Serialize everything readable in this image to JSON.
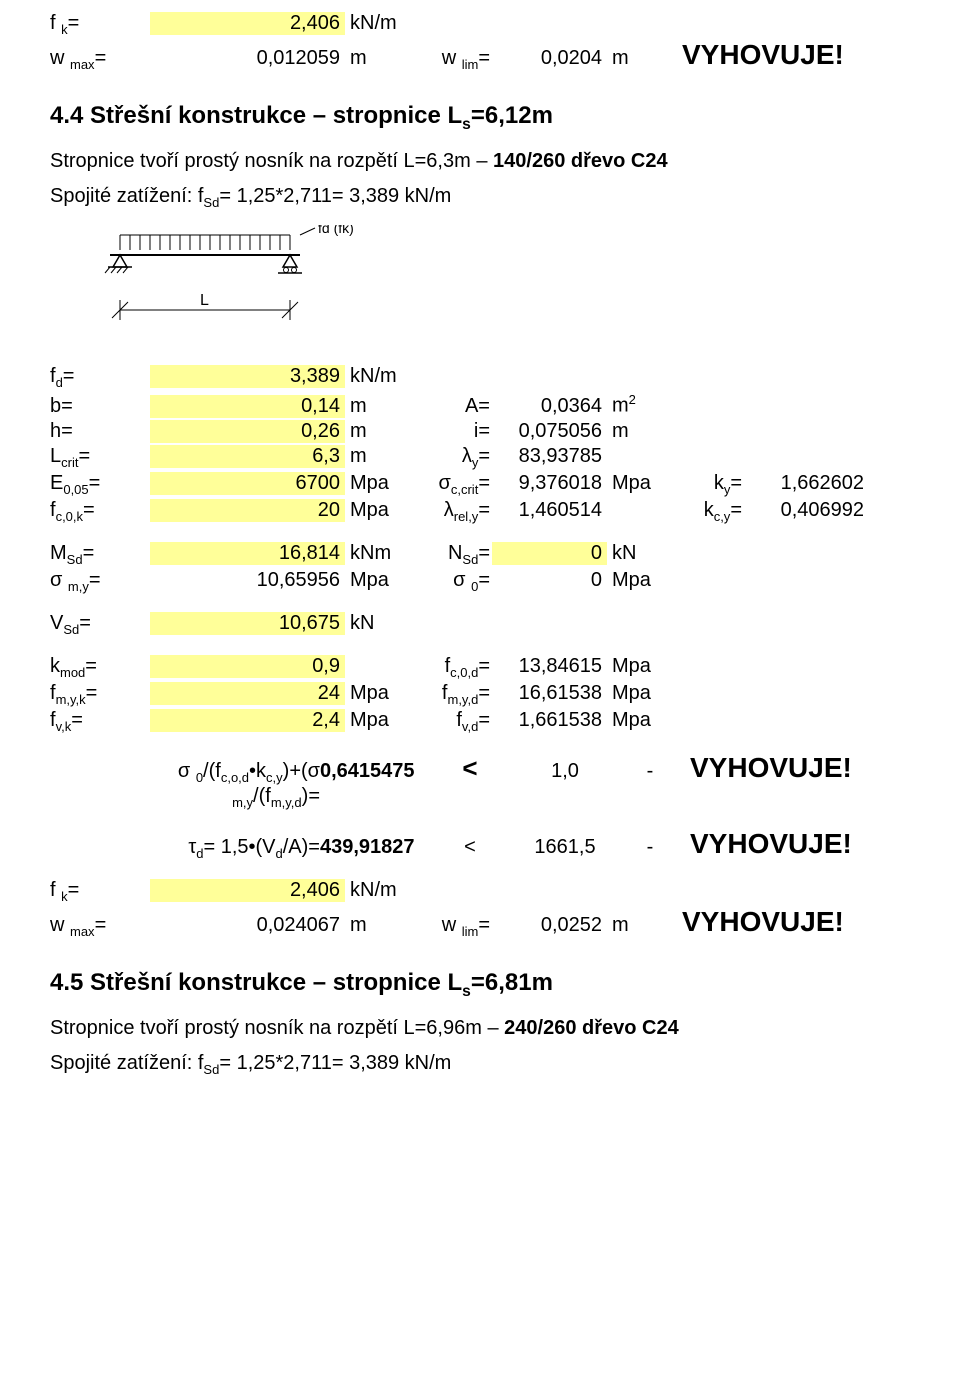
{
  "topblock": {
    "fk": {
      "sym": "f <sub>k</sub>=",
      "val": "2,406",
      "unit": "kN/m"
    },
    "wmax": {
      "sym": "w <sub>max</sub>=",
      "val": "0,012059",
      "unit": "m"
    },
    "wlim": {
      "sym": "w <sub>lim</sub>=",
      "val": "0,0204",
      "unit": "m"
    },
    "vyh": "VYHOVUJE!"
  },
  "heading44": "4.4  Střešní konstrukce – stropnice L<sub>s</sub>=6,12m",
  "para44a": "Stropnice tvoří prostý nosník na rozpětí L=6,3m – <b>140/260 dřevo C24</b>",
  "para44b": "Spojité zatížení: f<sub>Sd</sub>= 1,25*2,711= 3,389 kN/m",
  "block1": {
    "fd": {
      "sym": "f<sub>d</sub>=",
      "val": "3,389",
      "unit": "kN/m",
      "hl": true
    },
    "b": {
      "sym": "b=",
      "val": "0,14",
      "unit": "m",
      "hl": true,
      "s2": "A=",
      "v2": "0,0364",
      "u2": "m<sup>2</sup>"
    },
    "h": {
      "sym": "h=",
      "val": "0,26",
      "unit": "m",
      "hl": true,
      "s2": "i=",
      "v2": "0,075056",
      "u2": "m"
    },
    "Lcrit": {
      "sym": "L<sub>crit</sub>=",
      "val": "6,3",
      "unit": "m",
      "hl": true,
      "s2": "λ<sub>y</sub>=",
      "v2": "83,93785",
      "u2": ""
    },
    "E005": {
      "sym": "E<sub>0,05</sub>=",
      "val": "6700",
      "unit": "Mpa",
      "hl": true,
      "s2": "σ<sub>c,crit</sub>=",
      "v2": "9,376018",
      "u2": "Mpa",
      "s3": "k<sub>y</sub>=",
      "v3": "1,662602"
    },
    "fc0k": {
      "sym": "f<sub>c,0,k</sub>=",
      "val": "20",
      "unit": "Mpa",
      "hl": true,
      "s2": "λ<sub>rel,y</sub>=",
      "v2": "1,460514",
      "u2": "",
      "s3": "k<sub>c,y</sub>=",
      "v3": "0,406992"
    }
  },
  "block2": {
    "MSd": {
      "sym": "M<sub>Sd</sub>=",
      "val": "16,814",
      "unit": "kNm",
      "hl": true,
      "s2": "N<sub>Sd</sub>=",
      "v2": "0",
      "u2": "kN",
      "hl2": true
    },
    "sigmy": {
      "sym": "σ <sub>m,y</sub>=",
      "val": "10,65956",
      "unit": "Mpa",
      "s2": "σ <sub>0</sub>=",
      "v2": "0",
      "u2": "Mpa"
    }
  },
  "block3": {
    "VSd": {
      "sym": "V<sub>Sd</sub>=",
      "val": "10,675",
      "unit": "kN",
      "hl": true
    }
  },
  "block4": {
    "kmod": {
      "sym": "k<sub>mod</sub>=",
      "val": "0,9",
      "unit": "",
      "hl": true,
      "s2": "f<sub>c,0,d</sub>=",
      "v2": "13,84615",
      "u2": "Mpa"
    },
    "fmyk": {
      "sym": "f<sub>m,y,k</sub>=",
      "val": "24",
      "unit": "Mpa",
      "hl": true,
      "s2": "f<sub>m,y,d</sub>=",
      "v2": "16,61538",
      "u2": "Mpa"
    },
    "fvk": {
      "sym": "f<sub>v,k</sub>=",
      "val": "2,4",
      "unit": "Mpa",
      "hl": true,
      "s2": "f<sub>v,d</sub>=",
      "v2": "1,661538",
      "u2": "Mpa"
    }
  },
  "checks": {
    "c1": {
      "labelTop": "σ <sub>0</sub>/(f<sub>c,o,d</sub>•k<sub>c,y</sub>)+(σ",
      "labelBot": "<sub>m,y</sub>/(f<sub>m,y,d</sub>)= ",
      "val": "0,6415475",
      "lt": "<",
      "one": "1,0",
      "dash": "-",
      "vyh": "VYHOVUJE!"
    },
    "c2": {
      "label": "τ<sub>d</sub>= 1,5•(V<sub>d</sub>/A)= ",
      "val": "439,91827",
      "lt": "<",
      "one": "1661,5",
      "dash": "-",
      "vyh": "VYHOVUJE!"
    }
  },
  "bottomblock": {
    "fk": {
      "sym": "f <sub>k</sub>=",
      "val": "2,406",
      "unit": "kN/m"
    },
    "wmax": {
      "sym": "w <sub>max</sub>=",
      "val": "0,024067",
      "unit": "m"
    },
    "wlim": {
      "sym": "w <sub>lim</sub>=",
      "val": "0,0252",
      "unit": "m"
    },
    "vyh": "VYHOVUJE!"
  },
  "heading45": "4.5  Střešní konstrukce – stropnice L<sub>s</sub>=6,81m",
  "para45a": "Stropnice tvoří prostý nosník na rozpětí L=6,96m – <b>240/260 dřevo C24</b>",
  "para45b": "Spojité zatížení: f<sub>Sd</sub>= 1,25*2,711= 3,389 kN/m",
  "diagramLabels": {
    "fd": "fd (fk)",
    "L": "L"
  }
}
